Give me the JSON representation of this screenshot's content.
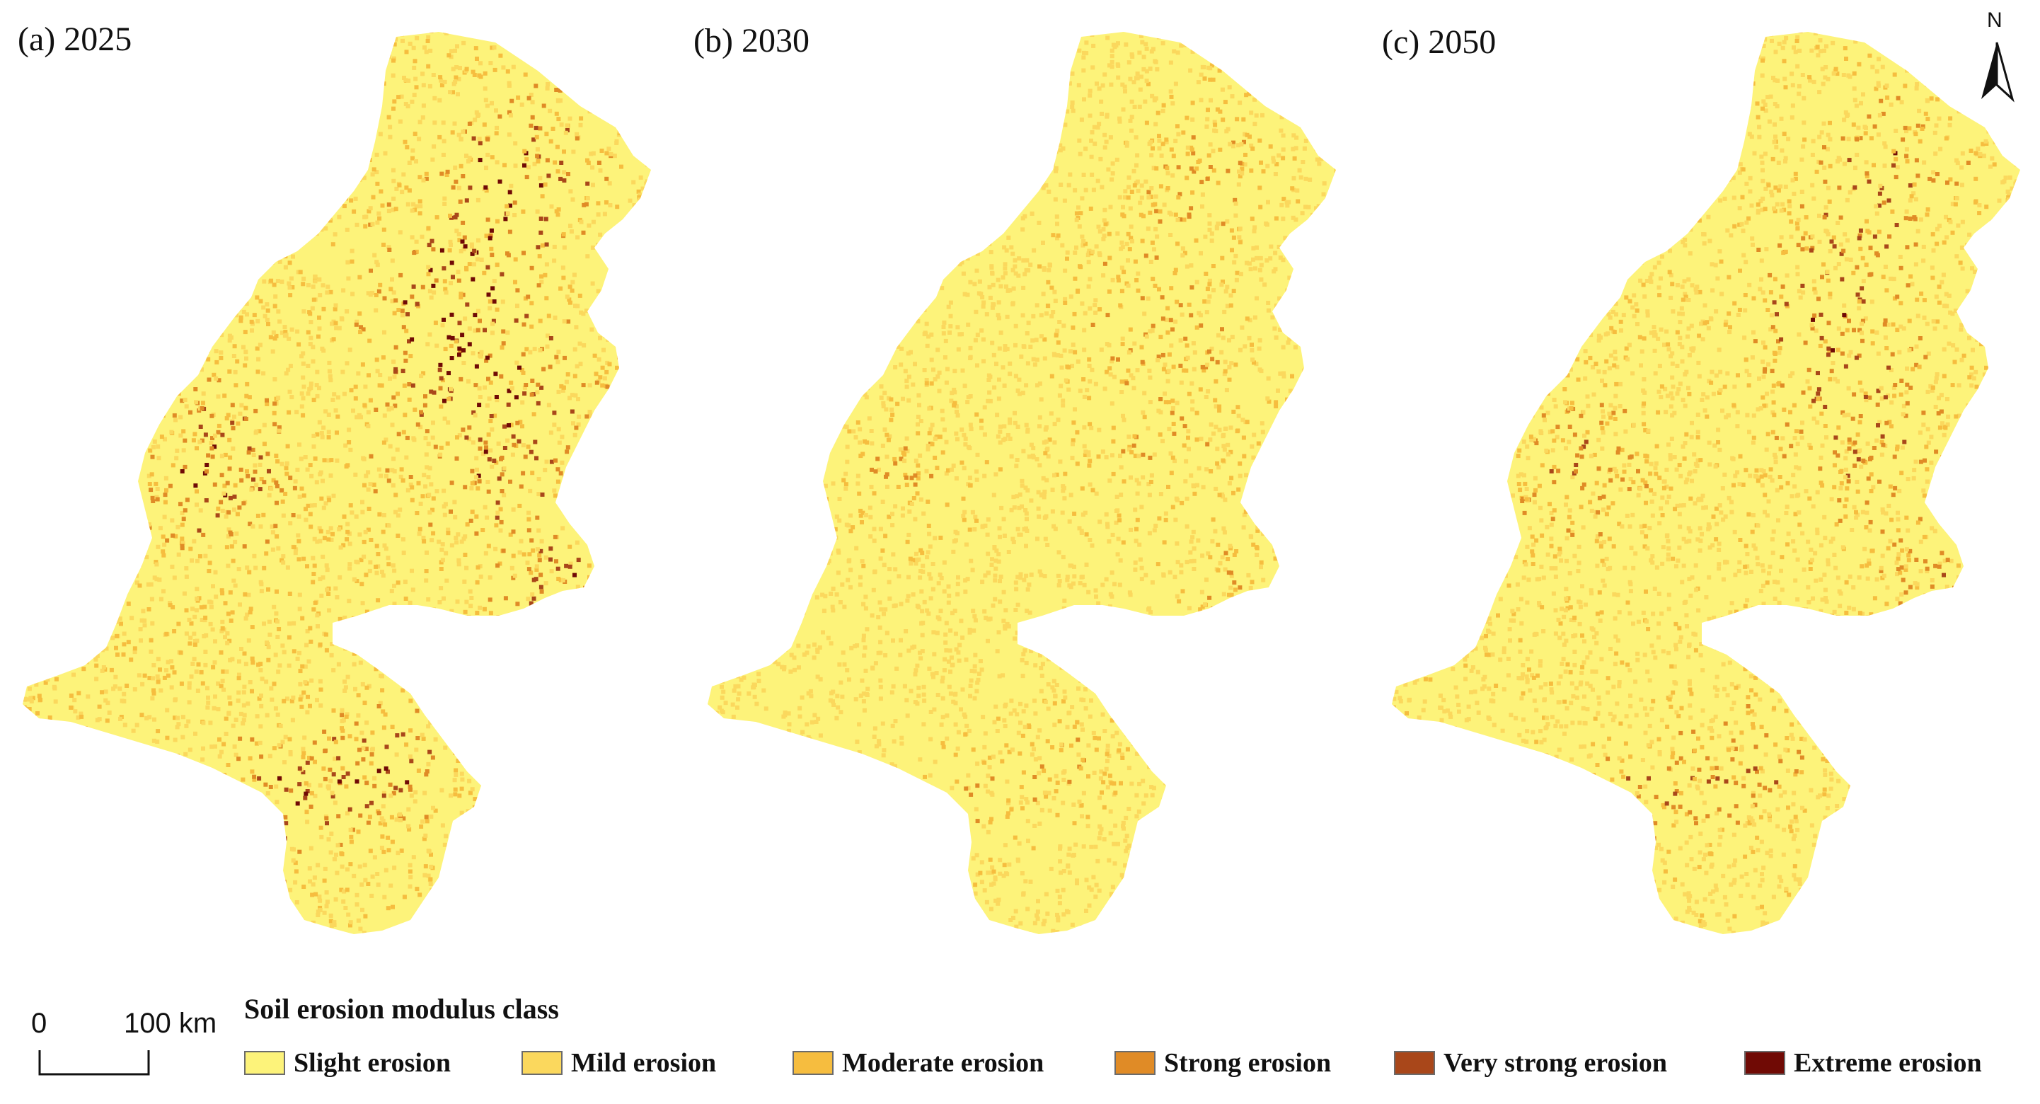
{
  "panels": [
    {
      "label": "(a) 2025",
      "intensity": 1.0
    },
    {
      "label": "(b) 2030",
      "intensity": 0.62
    },
    {
      "label": "(c) 2050",
      "intensity": 0.82
    }
  ],
  "legend": {
    "title": "Soil erosion modulus class",
    "items": [
      {
        "label": "Slight erosion",
        "color": "#fdf37a"
      },
      {
        "label": "Mild erosion",
        "color": "#fbd85d"
      },
      {
        "label": "Moderate erosion",
        "color": "#f6bd3f"
      },
      {
        "label": "Strong erosion",
        "color": "#e08b26"
      },
      {
        "label": "Very strong erosion",
        "color": "#a9471a"
      },
      {
        "label": "Extreme erosion",
        "color": "#700a05"
      }
    ]
  },
  "scale_bar": {
    "start": "0",
    "end": "100 km"
  },
  "north_arrow": {
    "label": "N"
  }
}
